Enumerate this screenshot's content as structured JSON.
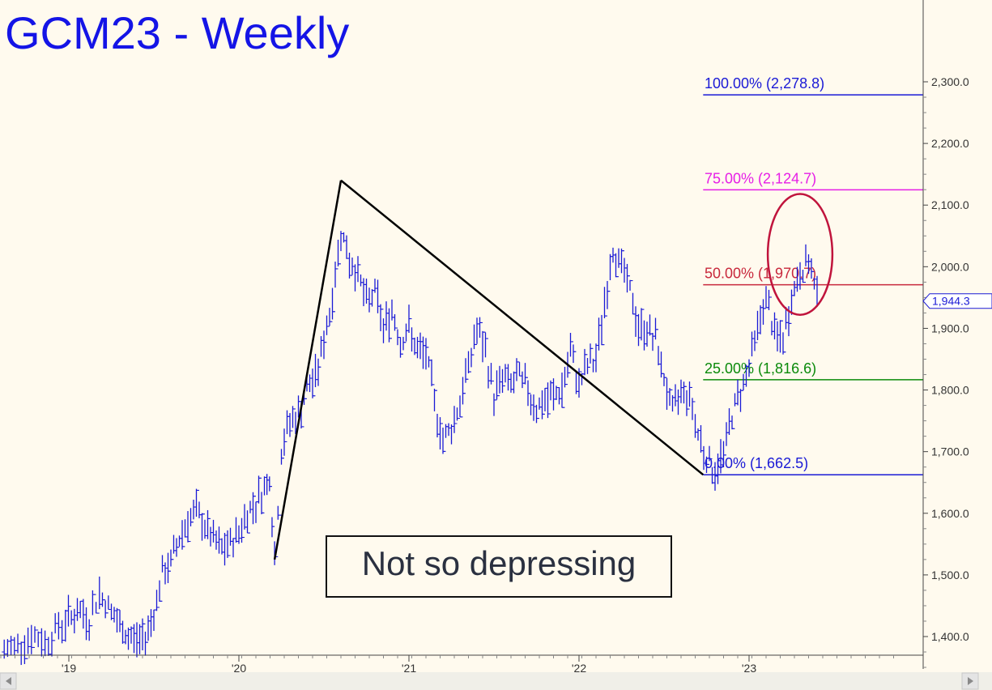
{
  "chart_data": {
    "type": "line",
    "title": "GCM23 - Weekly",
    "price_axis": {
      "ticks": [
        "2,300.0",
        "2,200.0",
        "2,100.0",
        "2,000.0",
        "1,900.0",
        "1,800.0",
        "1,700.0",
        "1,600.0",
        "1,500.0",
        "1,400.0"
      ],
      "tick_values": [
        2300,
        2200,
        2100,
        2000,
        1900,
        1800,
        1700,
        1600,
        1500,
        1400
      ],
      "range": [
        1370,
        2340
      ]
    },
    "time_axis": {
      "ticks": [
        "'19",
        "'20",
        "'21",
        "'22",
        "'23"
      ],
      "tick_values": [
        2019.0,
        2020.0,
        2021.0,
        2022.0,
        2023.0
      ],
      "range": [
        2018.6,
        2024.0
      ]
    },
    "last_price": {
      "label": "1,944.3",
      "value": 1944.3
    },
    "fib_levels": [
      {
        "label": "100.00% (2,278.8)",
        "value": 2278.8,
        "color": "#1a1ad6"
      },
      {
        "label": "75.00% (2,124.7)",
        "value": 2124.7,
        "color": "#e61ee6"
      },
      {
        "label": "50.00% (1,970.7)",
        "value": 1970.7,
        "color": "#c8283c"
      },
      {
        "label": "25.00% (1,816.6)",
        "value": 1816.6,
        "color": "#0a8a0a"
      },
      {
        "label": "0.00% (1,662.5)",
        "value": 1662.5,
        "color": "#1a1ad6"
      }
    ],
    "fib_start_date": 2022.73,
    "trend_lines": [
      {
        "name": "impulse-up",
        "points": [
          [
            2020.21,
            1525
          ],
          [
            2020.6,
            2140
          ]
        ]
      },
      {
        "name": "decline",
        "points": [
          [
            2020.6,
            2140
          ],
          [
            2022.73,
            1662.5
          ]
        ]
      }
    ],
    "highlight_ellipse": {
      "center": [
        2023.3,
        2020
      ],
      "rx_years": 0.19,
      "ry_price": 98,
      "color": "#c0143c"
    },
    "annotation": "Not so depressing",
    "series": [
      {
        "color": "#1a1ad6",
        "x": [
          2018.62,
          2018.68,
          2018.74,
          2018.8,
          2018.86,
          2018.92,
          2018.98,
          2019.05,
          2019.12,
          2019.18,
          2019.25,
          2019.3,
          2019.35,
          2019.4,
          2019.45,
          2019.5,
          2019.55,
          2019.6,
          2019.65,
          2019.7,
          2019.75,
          2019.8,
          2019.85,
          2019.9,
          2019.95,
          2020.0,
          2020.05,
          2020.1,
          2020.15,
          2020.18,
          2020.21,
          2020.25,
          2020.3,
          2020.35,
          2020.4,
          2020.45,
          2020.5,
          2020.55,
          2020.6,
          2020.65,
          2020.7,
          2020.75,
          2020.8,
          2020.85,
          2020.9,
          2020.95,
          2021.0,
          2021.05,
          2021.1,
          2021.15,
          2021.2,
          2021.25,
          2021.3,
          2021.35,
          2021.4,
          2021.45,
          2021.5,
          2021.55,
          2021.6,
          2021.65,
          2021.7,
          2021.75,
          2021.8,
          2021.85,
          2021.9,
          2021.95,
          2022.0,
          2022.05,
          2022.1,
          2022.15,
          2022.2,
          2022.25,
          2022.3,
          2022.35,
          2022.4,
          2022.45,
          2022.5,
          2022.55,
          2022.6,
          2022.65,
          2022.7,
          2022.75,
          2022.8,
          2022.85,
          2022.9,
          2022.95,
          2023.0,
          2023.05,
          2023.1,
          2023.15,
          2023.2,
          2023.25,
          2023.3,
          2023.35,
          2023.4
        ],
        "values": [
          1375,
          1385,
          1395,
          1400,
          1390,
          1410,
          1425,
          1440,
          1430,
          1470,
          1440,
          1415,
          1400,
          1395,
          1400,
          1440,
          1500,
          1520,
          1560,
          1590,
          1600,
          1580,
          1555,
          1540,
          1550,
          1570,
          1600,
          1620,
          1640,
          1660,
          1525,
          1700,
          1750,
          1760,
          1800,
          1820,
          1880,
          1950,
          2060,
          2010,
          1990,
          1940,
          1960,
          1900,
          1930,
          1880,
          1900,
          1860,
          1860,
          1780,
          1720,
          1740,
          1780,
          1840,
          1900,
          1860,
          1790,
          1820,
          1810,
          1820,
          1800,
          1770,
          1780,
          1790,
          1800,
          1860,
          1810,
          1840,
          1850,
          1940,
          2030,
          2000,
          1960,
          1900,
          1900,
          1880,
          1820,
          1760,
          1800,
          1790,
          1730,
          1690,
          1665,
          1700,
          1760,
          1800,
          1840,
          1900,
          1950,
          1890,
          1880,
          1950,
          1990,
          2010,
          1944.3
        ]
      }
    ]
  }
}
